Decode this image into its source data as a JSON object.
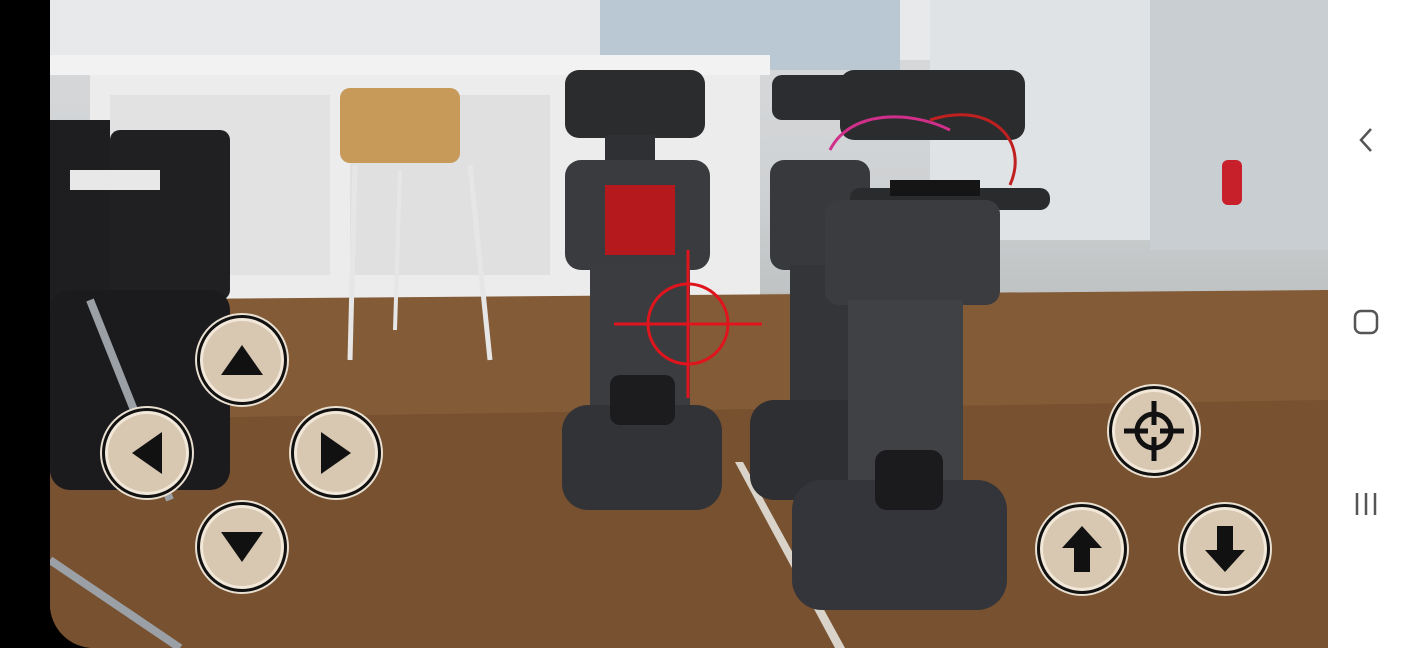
{
  "controls": {
    "dpad": [
      "up",
      "left",
      "right",
      "down"
    ],
    "right": [
      "target",
      "forward",
      "backward"
    ]
  },
  "navigation": {
    "back_icon": "chevron-left-icon",
    "home_icon": "home-square-icon",
    "recents_icon": "recents-bars-icon"
  },
  "colors": {
    "crosshair": "#e0141c",
    "button_fill": "#d8c8b2",
    "button_stroke": "#111111",
    "navbar": "#ffffff"
  }
}
